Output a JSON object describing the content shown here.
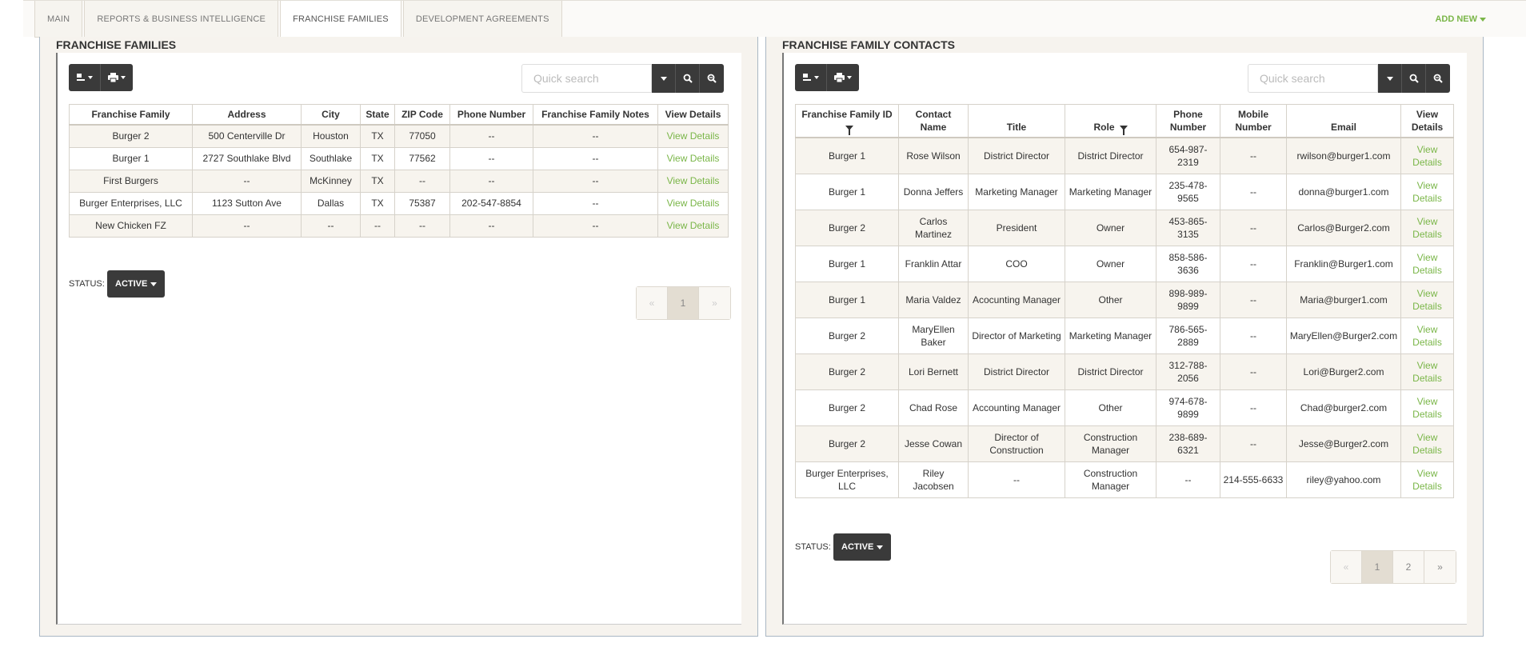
{
  "nav": {
    "tabs": [
      {
        "label": "MAIN"
      },
      {
        "label": "REPORTS & BUSINESS INTELLIGENCE"
      },
      {
        "label": "FRANCHISE FAMILIES"
      },
      {
        "label": "DEVELOPMENT AGREEMENTS"
      }
    ],
    "active_tab": "FRANCHISE FAMILIES",
    "add_new": "ADD NEW"
  },
  "families": {
    "title": "FRANCHISE FAMILIES",
    "search_placeholder": "Quick search",
    "columns": [
      "Franchise Family",
      "Address",
      "City",
      "State",
      "ZIP Code",
      "Phone Number",
      "Franchise Family Notes",
      "View Details"
    ],
    "rows": [
      [
        "Burger 2",
        "500 Centerville Dr",
        "Houston",
        "TX",
        "77050",
        "--",
        "--",
        "View Details"
      ],
      [
        "Burger 1",
        "2727 Southlake Blvd",
        "Southlake",
        "TX",
        "77562",
        "--",
        "--",
        "View Details"
      ],
      [
        "First Burgers",
        "--",
        "McKinney",
        "TX",
        "--",
        "--",
        "--",
        "View Details"
      ],
      [
        "Burger Enterprises, LLC",
        "1123 Sutton Ave",
        "Dallas",
        "TX",
        "75387",
        "202-547-8854",
        "--",
        "View Details"
      ],
      [
        "New Chicken FZ",
        "--",
        "--",
        "--",
        "--",
        "--",
        "--",
        "View Details"
      ]
    ],
    "status_label": "STATUS:",
    "status_value": "ACTIVE",
    "pager": {
      "prev": "«",
      "pages": [
        "1"
      ],
      "next": "»"
    }
  },
  "contacts": {
    "title": "FRANCHISE FAMILY CONTACTS",
    "search_placeholder": "Quick search",
    "columns": [
      "Franchise Family ID",
      "Contact Name",
      "Title",
      "Role",
      "Phone Number",
      "Mobile Number",
      "Email",
      "View Details"
    ],
    "rows": [
      [
        "Burger 1",
        "Rose Wilson",
        "District Director",
        "District Director",
        "654-987-2319",
        "--",
        "rwilson@burger1.com",
        "View Details"
      ],
      [
        "Burger 1",
        "Donna Jeffers",
        "Marketing Manager",
        "Marketing Manager",
        "235-478-9565",
        "--",
        "donna@burger1.com",
        "View Details"
      ],
      [
        "Burger 2",
        "Carlos Martinez",
        "President",
        "Owner",
        "453-865-3135",
        "--",
        "Carlos@Burger2.com",
        "View Details"
      ],
      [
        "Burger 1",
        "Franklin Attar",
        "COO",
        "Owner",
        "858-586-3636",
        "--",
        "Franklin@Burger1.com",
        "View Details"
      ],
      [
        "Burger 1",
        "Maria Valdez",
        "Acocunting Manager",
        "Other",
        "898-989-9899",
        "--",
        "Maria@burger1.com",
        "View Details"
      ],
      [
        "Burger 2",
        "MaryEllen Baker",
        "Director of Marketing",
        "Marketing Manager",
        "786-565-2889",
        "--",
        "MaryEllen@Burger2.com",
        "View Details"
      ],
      [
        "Burger 2",
        "Lori Bernett",
        "District Director",
        "District Director",
        "312-788-2056",
        "--",
        "Lori@Burger2.com",
        "View Details"
      ],
      [
        "Burger 2",
        "Chad Rose",
        "Accounting Manager",
        "Other",
        "974-678-9899",
        "--",
        "Chad@burger2.com",
        "View Details"
      ],
      [
        "Burger 2",
        "Jesse Cowan",
        "Director of Construction",
        "Construction Manager",
        "238-689-6321",
        "--",
        "Jesse@Burger2.com",
        "View Details"
      ],
      [
        "Burger Enterprises, LLC",
        "Riley Jacobsen",
        "--",
        "Construction Manager",
        "--",
        "214-555-6633",
        "riley@yahoo.com",
        "View Details"
      ]
    ],
    "status_label": "STATUS:",
    "status_value": "ACTIVE",
    "pager": {
      "prev": "«",
      "pages": [
        "1",
        "2"
      ],
      "next": "»"
    }
  }
}
